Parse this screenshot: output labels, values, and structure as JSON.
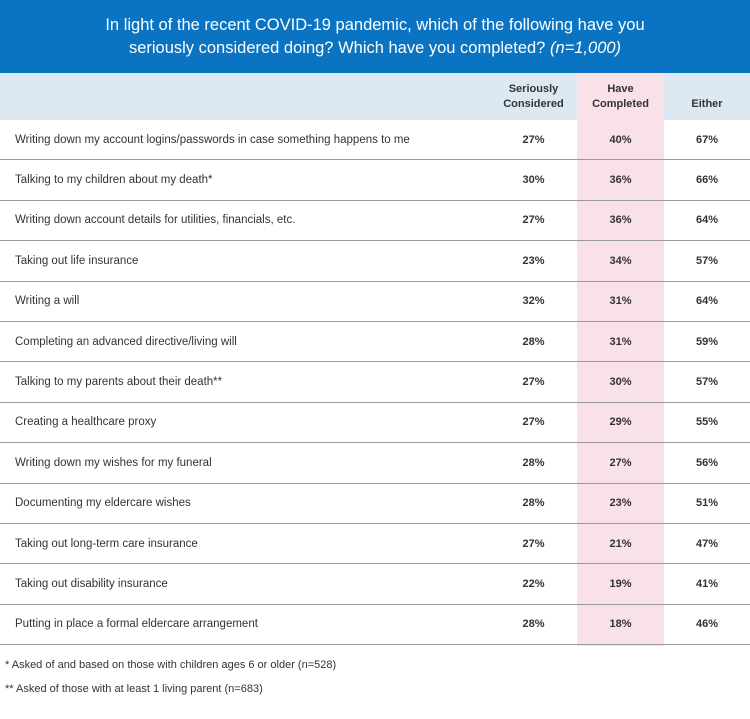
{
  "chart_data": {
    "type": "table",
    "title_line1": "In light of the recent COVID-19 pandemic, which of the following have you",
    "title_line2": "seriously considered doing? Which have you completed?",
    "sample_note": "(n=1,000)",
    "columns": [
      {
        "line1": "Seriously",
        "line2": "Considered"
      },
      {
        "line1": "Have",
        "line2": "Completed"
      },
      {
        "line1": "Either",
        "line2": ""
      }
    ],
    "rows": [
      {
        "label": "Writing down my account logins/passwords in case something happens to me",
        "seriously_considered": "27%",
        "have_completed": "40%",
        "either": "67%"
      },
      {
        "label": "Talking to my children about my death*",
        "seriously_considered": "30%",
        "have_completed": "36%",
        "either": "66%"
      },
      {
        "label": "Writing down account details for utilities, financials, etc.",
        "seriously_considered": "27%",
        "have_completed": "36%",
        "either": "64%"
      },
      {
        "label": "Taking out life insurance",
        "seriously_considered": "23%",
        "have_completed": "34%",
        "either": "57%"
      },
      {
        "label": "Writing a will",
        "seriously_considered": "32%",
        "have_completed": "31%",
        "either": "64%"
      },
      {
        "label": "Completing an advanced directive/living will",
        "seriously_considered": "28%",
        "have_completed": "31%",
        "either": "59%"
      },
      {
        "label": "Talking to my parents about their death**",
        "seriously_considered": "27%",
        "have_completed": "30%",
        "either": "57%"
      },
      {
        "label": "Creating a healthcare proxy",
        "seriously_considered": "27%",
        "have_completed": "29%",
        "either": "55%"
      },
      {
        "label": "Writing down my wishes for my funeral",
        "seriously_considered": "28%",
        "have_completed": "27%",
        "either": "56%"
      },
      {
        "label": "Documenting my eldercare wishes",
        "seriously_considered": "28%",
        "have_completed": "23%",
        "either": "51%"
      },
      {
        "label": "Taking out long-term care insurance",
        "seriously_considered": "27%",
        "have_completed": "21%",
        "either": "47%"
      },
      {
        "label": "Taking out disability insurance",
        "seriously_considered": "22%",
        "have_completed": "19%",
        "either": "41%"
      },
      {
        "label": "Putting in place a formal eldercare arrangement",
        "seriously_considered": "28%",
        "have_completed": "18%",
        "either": "46%"
      }
    ],
    "footnotes": [
      "* Asked of and based on those with children ages 6 or older (n=528)",
      "** Asked of those with at least 1 living parent (n=683)"
    ]
  },
  "colors": {
    "header_bg": "#0a74c2",
    "column_header_bg": "#dce9f2",
    "highlight_column_bg": "#f8e1e7"
  }
}
